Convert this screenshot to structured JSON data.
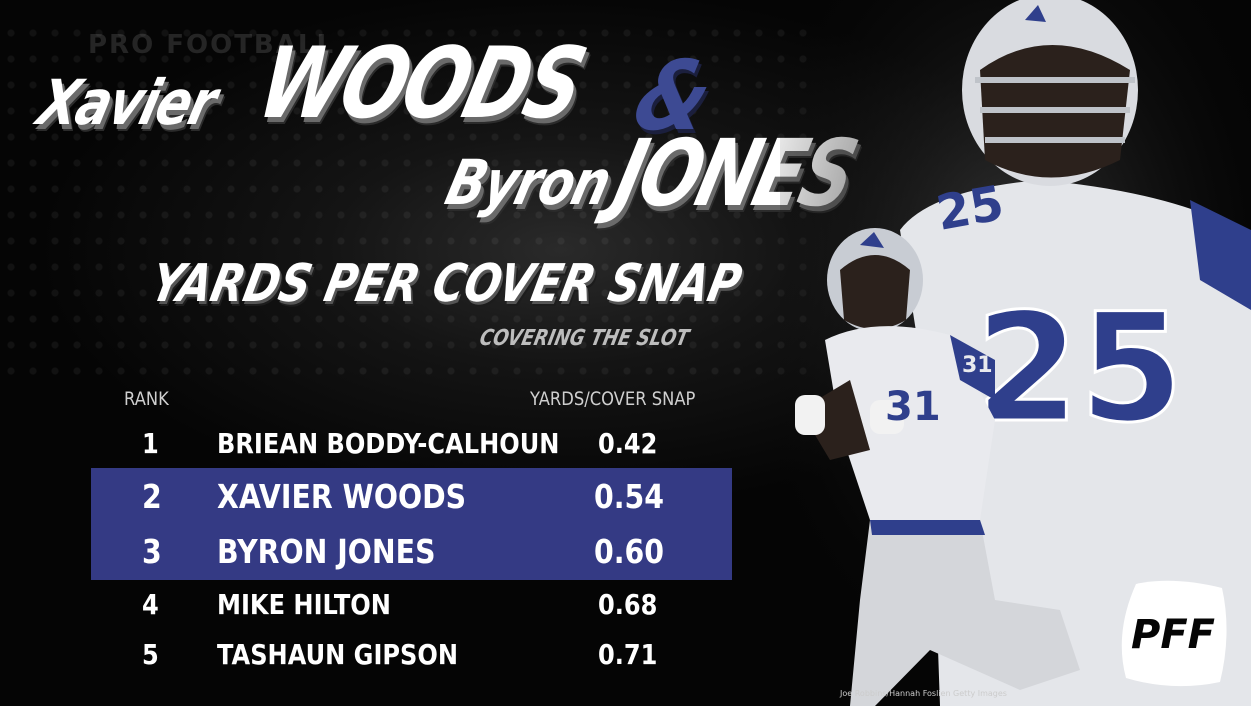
{
  "background_watermark": "PRO FOOTBALL",
  "title": {
    "first_name_1": "Xavier",
    "last_name_1": "WOODS",
    "ampersand": "&",
    "first_name_2": "Byron",
    "last_name_2": "JONES"
  },
  "subtitle": "YARDS PER COVER SNAP",
  "subsubtitle": "COVERING THE SLOT",
  "table": {
    "headers": {
      "rank": "RANK",
      "value": "YARDS/COVER SNAP"
    },
    "rows": [
      {
        "rank": "1",
        "name": "BRIEAN BODDY-CALHOUN",
        "value": "0.42"
      },
      {
        "rank": "2",
        "name": "XAVIER WOODS",
        "value": "0.54"
      },
      {
        "rank": "3",
        "name": "BYRON JONES",
        "value": "0.60"
      },
      {
        "rank": "4",
        "name": "MIKE HILTON",
        "value": "0.68"
      },
      {
        "rank": "5",
        "name": "TASHAUN GIPSON",
        "value": "0.71"
      }
    ],
    "highlight_color": "#343a84"
  },
  "players": {
    "jersey_numbers": [
      "25",
      "31"
    ]
  },
  "logo_text": "PFF",
  "photo_credit": "Joe Robbins/Hannah Foslien Getty Images",
  "colors": {
    "accent": "#3d4a93",
    "background": "#050505"
  }
}
